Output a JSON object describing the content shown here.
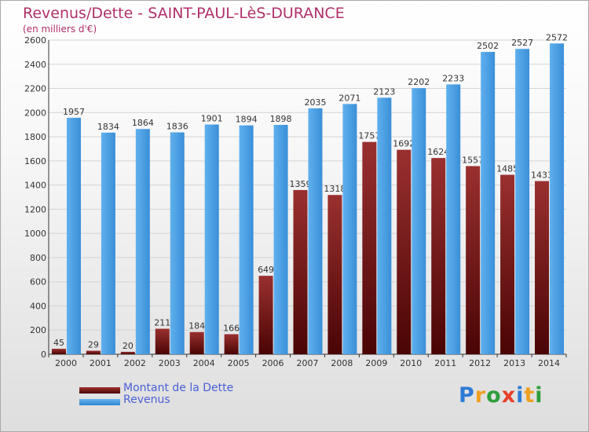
{
  "chart_data": {
    "type": "bar",
    "title": "Revenus/Dette - SAINT-PAUL-LèS-DURANCE",
    "subtitle": "(en milliers d'€)",
    "categories": [
      "2000",
      "2001",
      "2002",
      "2003",
      "2004",
      "2005",
      "2006",
      "2007",
      "2008",
      "2009",
      "2010",
      "2011",
      "2012",
      "2013",
      "2014"
    ],
    "series": [
      {
        "name": "Montant de la Dette",
        "color": "#7a1a1a",
        "values": [
          45,
          29,
          20,
          211,
          184,
          166,
          649,
          1359,
          1318,
          1757,
          1692,
          1624,
          1557,
          1485,
          1433
        ],
        "labels": [
          "45",
          "29",
          "20",
          "211",
          "184",
          "166",
          "649",
          "1359",
          "1318",
          "1757",
          "1692",
          "1624",
          "1557",
          "1485",
          "1433"
        ]
      },
      {
        "name": "Revenus",
        "color": "#4a9fe3",
        "values": [
          1957,
          1834,
          1864,
          1836,
          1901,
          1894,
          1898,
          2035,
          2071,
          2123,
          2202,
          2233,
          2502,
          2527,
          2572
        ],
        "labels": [
          "1957",
          "1834",
          "1864",
          "1836",
          "1901",
          "1894",
          "1898",
          "2035",
          "2071",
          "2123",
          "2202",
          "2233",
          "2502",
          "2527",
          "2572"
        ]
      }
    ],
    "ylim": [
      0,
      2600
    ],
    "yticks": [
      0,
      200,
      400,
      600,
      800,
      1000,
      1200,
      1400,
      1600,
      1800,
      2000,
      2200,
      2400,
      2600
    ],
    "grid": true,
    "legend_position": "bottom-left"
  },
  "logo": {
    "text": "Proxiti",
    "colors": [
      "#2e7bd6",
      "#f0a020",
      "#2e9e3a",
      "#e8402a",
      "#2e7bd6",
      "#f0a020",
      "#2e9e3a"
    ]
  }
}
